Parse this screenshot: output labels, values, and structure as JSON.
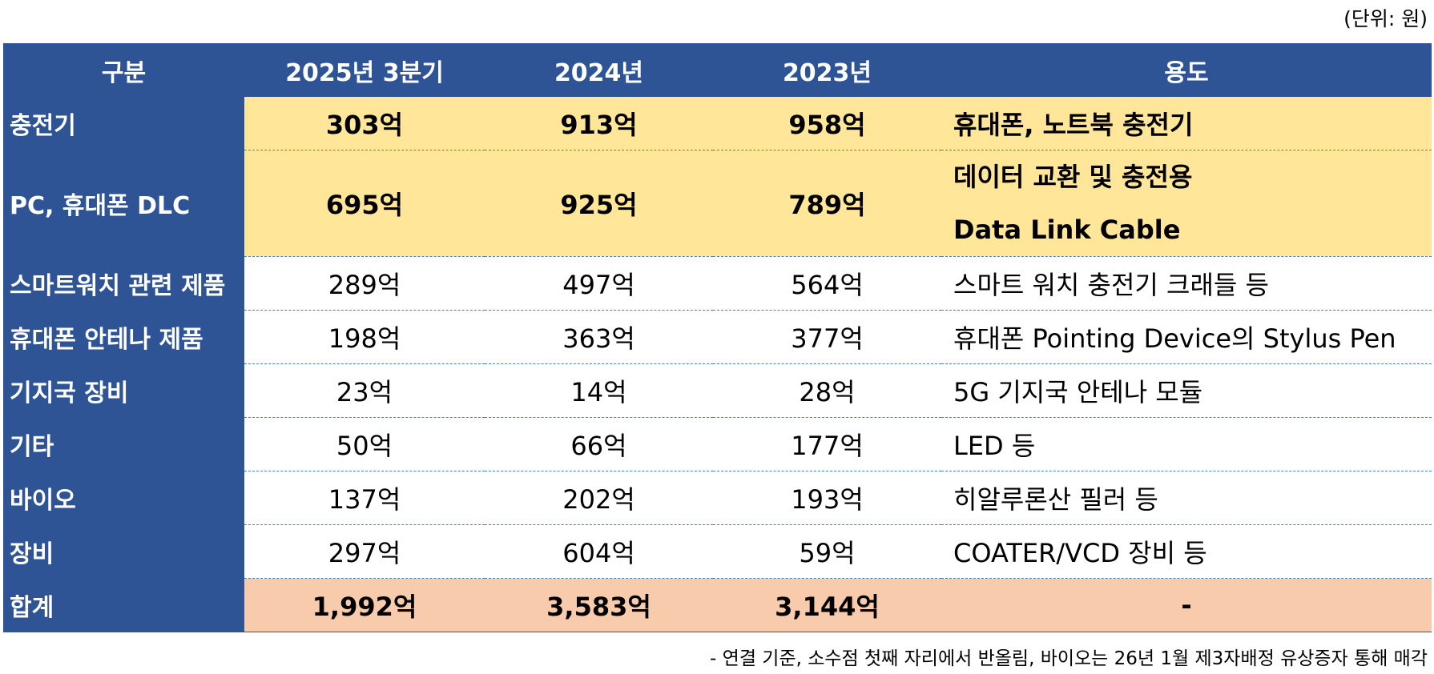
{
  "unit_note": "(단위: 원)",
  "headers": [
    "구분",
    "2025년 3분기",
    "2024년",
    "2023년",
    "용도"
  ],
  "rows": [
    {
      "label": "충전기",
      "q3_2025": "303억",
      "y2024": "913억",
      "y2023": "958억",
      "use": [
        "휴대폰, 노트북 충전기"
      ]
    },
    {
      "label": "PC, 휴대폰 DLC",
      "q3_2025": "695억",
      "y2024": "925억",
      "y2023": "789억",
      "use": [
        "데이터 교환 및 충전용",
        "Data Link Cable"
      ]
    },
    {
      "label": "스마트워치 관련 제품",
      "q3_2025": "289억",
      "y2024": "497억",
      "y2023": "564억",
      "use": [
        "스마트 워치 충전기 크래들 등"
      ]
    },
    {
      "label": "휴대폰 안테나 제품",
      "q3_2025": "198억",
      "y2024": "363억",
      "y2023": "377억",
      "use": [
        "휴대폰 Pointing Device의 Stylus Pen"
      ]
    },
    {
      "label": "기지국 장비",
      "q3_2025": "23억",
      "y2024": "14억",
      "y2023": "28억",
      "use": [
        "5G 기지국 안테나 모듈"
      ]
    },
    {
      "label": "기타",
      "q3_2025": "50억",
      "y2024": "66억",
      "y2023": "177억",
      "use": [
        "LED 등"
      ]
    },
    {
      "label": "바이오",
      "q3_2025": "137억",
      "y2024": "202억",
      "y2023": "193억",
      "use": [
        "히알루론산 필러 등"
      ]
    },
    {
      "label": "장비",
      "q3_2025": "297억",
      "y2024": "604억",
      "y2023": "59억",
      "use": [
        "COATER/VCD 장비 등"
      ]
    }
  ],
  "total": {
    "label": "합계",
    "q3_2025": "1,992억",
    "y2024": "3,583억",
    "y2023": "3,144억",
    "use": "-"
  },
  "footnote": "- 연결 기준, 소수점 첫째 자리에서 반올림, 바이오는 26년 1월 제3자배정 유상증자 통해 매각",
  "colors": {
    "header_bg": "#2F5496",
    "highlight_row_bg": "#FFE699",
    "total_row_bg": "#F8CBAD",
    "divider": "#4a7fb5"
  }
}
